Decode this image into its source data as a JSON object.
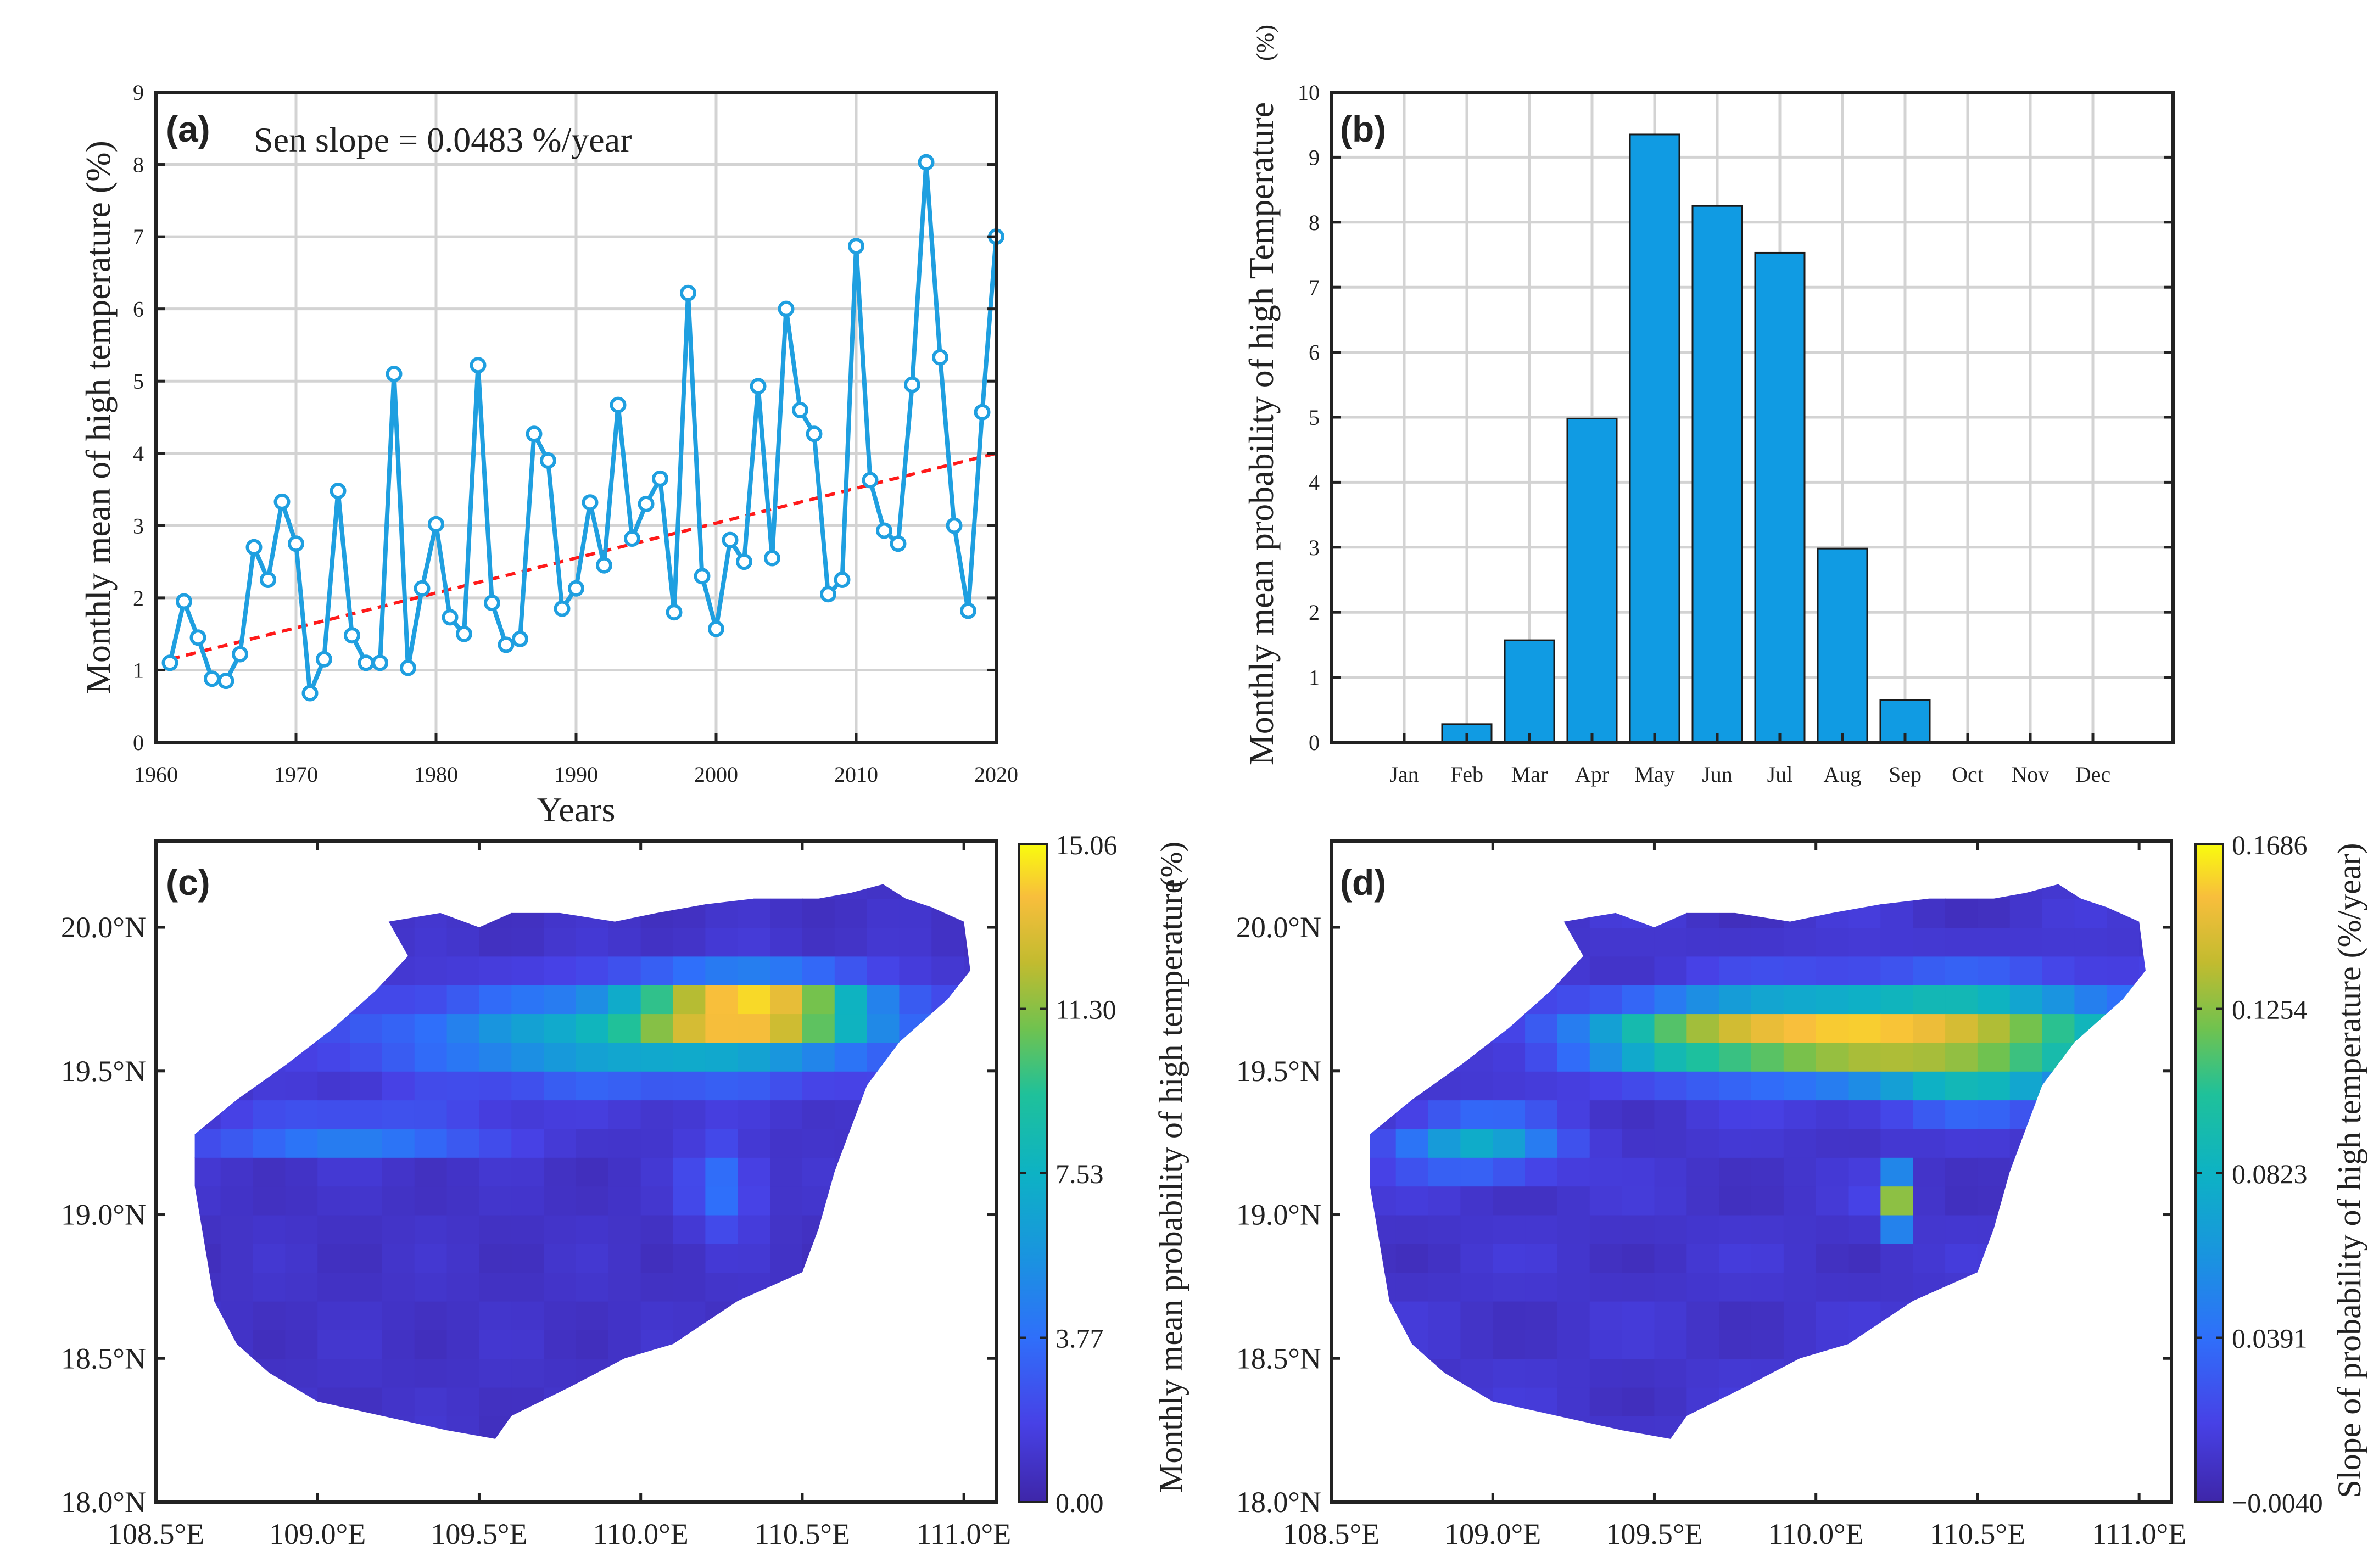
{
  "panels": {
    "a": {
      "label": "(a)",
      "annotation": "Sen slope = 0.0483 %/year"
    },
    "b": {
      "label": "(b)"
    },
    "c": {
      "label": "(c)"
    },
    "d": {
      "label": "(d)"
    }
  },
  "colors": {
    "series_blue": "#1f9fe0",
    "bar_blue": "#109be3",
    "trend_red": "#ff1a1a",
    "axis": "#222222",
    "grid": "#d3d3d3",
    "map_low": "#3c2fb8"
  },
  "chart_data": [
    {
      "id": "a",
      "type": "line",
      "title": "",
      "xlabel": "Years",
      "ylabel": "Monthly mean of high temperature (%)",
      "xlim": [
        1960,
        2020
      ],
      "ylim": [
        0,
        9
      ],
      "xticks": [
        1960,
        1970,
        1980,
        1990,
        2000,
        2010,
        2020
      ],
      "yticks": [
        0,
        1,
        2,
        3,
        4,
        5,
        6,
        7,
        8,
        9
      ],
      "grid": true,
      "series": [
        {
          "name": "monthly mean",
          "x": [
            1961,
            1962,
            1963,
            1964,
            1965,
            1966,
            1967,
            1968,
            1969,
            1970,
            1971,
            1972,
            1973,
            1974,
            1975,
            1976,
            1977,
            1978,
            1979,
            1980,
            1981,
            1982,
            1983,
            1984,
            1985,
            1986,
            1987,
            1988,
            1989,
            1990,
            1991,
            1992,
            1993,
            1994,
            1995,
            1996,
            1997,
            1998,
            1999,
            2000,
            2001,
            2002,
            2003,
            2004,
            2005,
            2006,
            2007,
            2008,
            2009,
            2010,
            2011,
            2012,
            2013,
            2014,
            2015,
            2016,
            2017,
            2018,
            2019,
            2020
          ],
          "values": [
            1.1,
            1.95,
            1.45,
            0.88,
            0.85,
            1.22,
            2.7,
            2.25,
            3.33,
            2.75,
            0.68,
            1.15,
            3.48,
            1.48,
            1.1,
            1.1,
            5.1,
            1.03,
            2.13,
            3.02,
            1.73,
            1.5,
            5.22,
            1.93,
            1.35,
            1.43,
            4.27,
            3.9,
            1.85,
            2.13,
            3.32,
            2.45,
            4.67,
            2.82,
            3.3,
            3.65,
            1.8,
            6.22,
            2.3,
            1.57,
            2.8,
            2.5,
            4.93,
            2.55,
            6.0,
            4.6,
            4.27,
            2.05,
            2.25,
            6.87,
            3.63,
            2.93,
            2.75,
            4.95,
            8.03,
            5.33,
            3.0,
            1.82,
            4.57,
            7.0
          ]
        },
        {
          "name": "Sen trend",
          "style": "dashed",
          "x": [
            1961,
            2020
          ],
          "values": [
            1.15,
            4.0
          ]
        }
      ]
    },
    {
      "id": "b",
      "type": "bar",
      "title": "",
      "xlabel": "",
      "ylabel": "Monthly mean probability of high Temperature",
      "ylabel_unit": "(%)",
      "ylim": [
        0,
        10
      ],
      "yticks": [
        0,
        1,
        2,
        3,
        4,
        5,
        6,
        7,
        8,
        9,
        10
      ],
      "grid": true,
      "categories": [
        "Jan",
        "Feb",
        "Mar",
        "Apr",
        "May",
        "Jun",
        "Jul",
        "Aug",
        "Sep",
        "Oct",
        "Nov",
        "Dec"
      ],
      "values": [
        0,
        0.28,
        1.57,
        4.98,
        9.35,
        8.25,
        7.53,
        2.98,
        0.65,
        0,
        0,
        0
      ]
    },
    {
      "id": "c",
      "type": "heatmap",
      "title": "",
      "xlabel": "",
      "ylabel": "",
      "xticks": [
        "108.5°E",
        "109.0°E",
        "109.5°E",
        "110.0°E",
        "110.5°E",
        "111.0°E"
      ],
      "yticks": [
        "18.0°N",
        "18.5°N",
        "19.0°N",
        "19.5°N",
        "20.0°N"
      ],
      "xlim": [
        108.5,
        111.1
      ],
      "ylim": [
        18.0,
        20.3
      ],
      "colorbar": {
        "label": "Monthly mean probability of high temperature",
        "unit": "(%)",
        "ticks": [
          "0.00",
          "3.77",
          "7.53",
          "11.30",
          "15.06"
        ],
        "range": [
          0,
          15.06
        ]
      }
    },
    {
      "id": "d",
      "type": "heatmap",
      "title": "",
      "xlabel": "",
      "ylabel": "",
      "xticks": [
        "108.5°E",
        "109.0°E",
        "109.5°E",
        "110.0°E",
        "110.5°E",
        "111.0°E"
      ],
      "yticks": [
        "18.0°N",
        "18.5°N",
        "19.0°N",
        "19.5°N",
        "20.0°N"
      ],
      "xlim": [
        108.5,
        111.1
      ],
      "ylim": [
        18.0,
        20.3
      ],
      "colorbar": {
        "label": "Slope of probability of high temperature (%/year)",
        "unit": "",
        "ticks": [
          "−0.0040",
          "0.0391",
          "0.0823",
          "0.1254",
          "0.1686"
        ],
        "range": [
          -0.004,
          0.1686
        ]
      }
    }
  ]
}
